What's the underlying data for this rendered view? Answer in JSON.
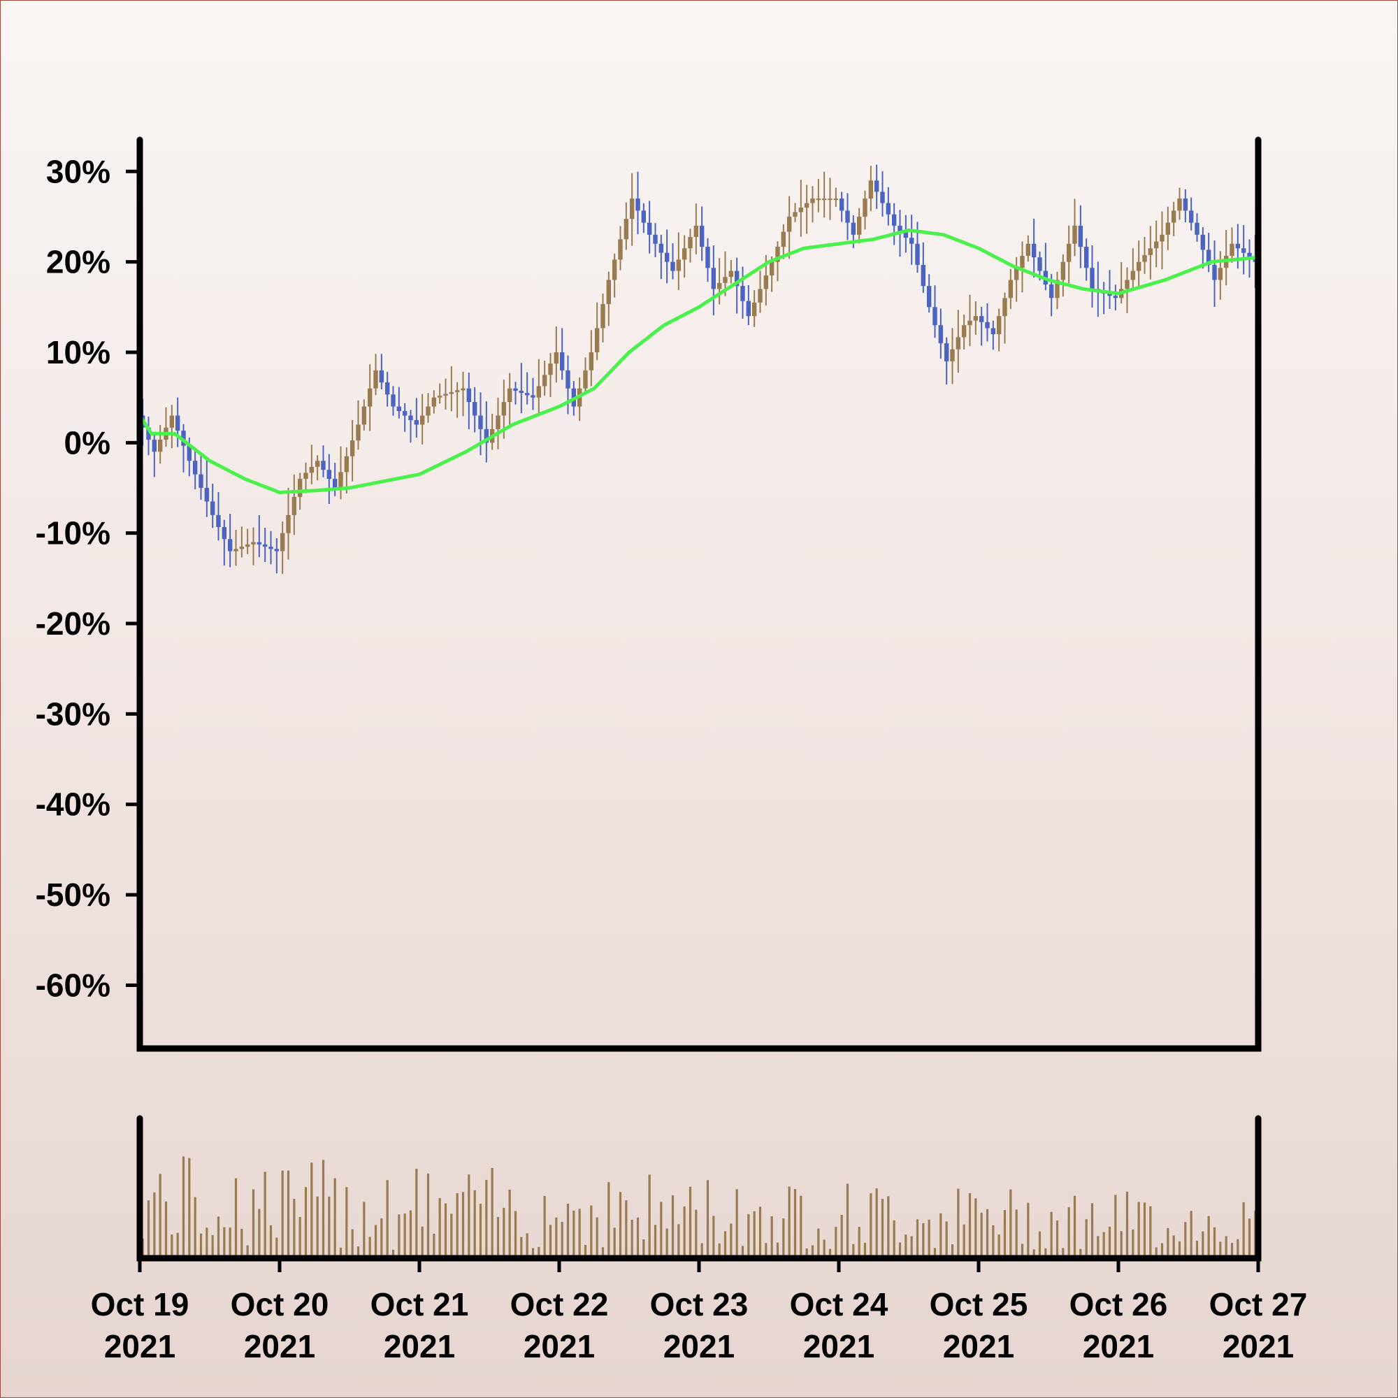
{
  "chart_data": {
    "type": "candlestick",
    "title": "",
    "xlabel": "",
    "ylabel": "",
    "ylim": [
      -67,
      33.5
    ],
    "yticks": [
      30,
      20,
      10,
      0,
      -10,
      -20,
      -30,
      -40,
      -50,
      -60
    ],
    "ytick_labels": [
      "30%",
      "20%",
      "10%",
      "0%",
      "-10%",
      "-20%",
      "-30%",
      "-40%",
      "-50%",
      "-60%"
    ],
    "xlim": [
      "2021-10-19",
      "2021-10-27"
    ],
    "x_ticks": [
      {
        "date": "2021-10-19",
        "line1": "Oct 19",
        "line2": "2021"
      },
      {
        "date": "2021-10-20",
        "line1": "Oct 20",
        "line2": "2021"
      },
      {
        "date": "2021-10-21",
        "line1": "Oct 21",
        "line2": "2021"
      },
      {
        "date": "2021-10-22",
        "line1": "Oct 22",
        "line2": "2021"
      },
      {
        "date": "2021-10-23",
        "line1": "Oct 23",
        "line2": "2021"
      },
      {
        "date": "2021-10-24",
        "line1": "Oct 24",
        "line2": "2021"
      },
      {
        "date": "2021-10-25",
        "line1": "Oct 25",
        "line2": "2021"
      },
      {
        "date": "2021-10-26",
        "line1": "Oct 26",
        "line2": "2021"
      },
      {
        "date": "2021-10-27",
        "line1": "Oct 27",
        "line2": "2021"
      }
    ],
    "up_color": "#9a7b4f",
    "down_color": "#4a64c0",
    "ma_color": "#4cf04c",
    "volume_color": "#9a7b4f",
    "price_anchors": [
      [
        "2021-10-19 00:00",
        3
      ],
      [
        "2021-10-19 03:00",
        -1
      ],
      [
        "2021-10-19 06:00",
        3
      ],
      [
        "2021-10-19 09:00",
        -2
      ],
      [
        "2021-10-19 13:00",
        -8
      ],
      [
        "2021-10-19 16:00",
        -12
      ],
      [
        "2021-10-19 20:00",
        -11
      ],
      [
        "2021-10-20 00:00",
        -12
      ],
      [
        "2021-10-20 04:00",
        -4
      ],
      [
        "2021-10-20 07:00",
        -2
      ],
      [
        "2021-10-20 10:00",
        -5
      ],
      [
        "2021-10-20 14:00",
        2
      ],
      [
        "2021-10-20 17:00",
        8
      ],
      [
        "2021-10-20 20:00",
        4
      ],
      [
        "2021-10-21 00:00",
        2
      ],
      [
        "2021-10-21 03:00",
        5
      ],
      [
        "2021-10-21 08:00",
        6
      ],
      [
        "2021-10-21 12:00",
        0
      ],
      [
        "2021-10-21 16:00",
        6
      ],
      [
        "2021-10-21 20:00",
        5
      ],
      [
        "2021-10-22 00:00",
        10
      ],
      [
        "2021-10-22 03:00",
        4
      ],
      [
        "2021-10-22 06:00",
        10
      ],
      [
        "2021-10-22 09:00",
        18
      ],
      [
        "2021-10-22 13:00",
        27
      ],
      [
        "2021-10-22 16:00",
        23
      ],
      [
        "2021-10-22 20:00",
        19
      ],
      [
        "2021-10-23 00:00",
        24
      ],
      [
        "2021-10-23 03:00",
        17
      ],
      [
        "2021-10-23 06:00",
        19
      ],
      [
        "2021-10-23 09:00",
        14
      ],
      [
        "2021-10-23 13:00",
        20
      ],
      [
        "2021-10-23 16:00",
        25
      ],
      [
        "2021-10-23 20:00",
        27
      ],
      [
        "2021-10-24 00:00",
        27
      ],
      [
        "2021-10-24 03:00",
        23
      ],
      [
        "2021-10-24 06:00",
        29
      ],
      [
        "2021-10-24 10:00",
        24
      ],
      [
        "2021-10-24 13:00",
        22
      ],
      [
        "2021-10-24 16:00",
        15
      ],
      [
        "2021-10-24 19:00",
        9
      ],
      [
        "2021-10-24 22:00",
        13
      ],
      [
        "2021-10-25 00:00",
        14
      ],
      [
        "2021-10-25 03:00",
        12
      ],
      [
        "2021-10-25 06:00",
        18
      ],
      [
        "2021-10-25 09:00",
        22
      ],
      [
        "2021-10-25 13:00",
        16
      ],
      [
        "2021-10-25 17:00",
        24
      ],
      [
        "2021-10-25 20:00",
        17
      ],
      [
        "2021-10-26 00:00",
        16
      ],
      [
        "2021-10-26 04:00",
        20
      ],
      [
        "2021-10-26 08:00",
        23
      ],
      [
        "2021-10-26 11:00",
        27
      ],
      [
        "2021-10-26 14:00",
        23
      ],
      [
        "2021-10-26 17:00",
        18
      ],
      [
        "2021-10-26 20:00",
        22
      ],
      [
        "2021-10-27 00:00",
        20
      ]
    ],
    "ma_series": [
      [
        "2021-10-19 00:00",
        3
      ],
      [
        "2021-10-19 02:00",
        1
      ],
      [
        "2021-10-19 06:00",
        1
      ],
      [
        "2021-10-19 12:00",
        -2
      ],
      [
        "2021-10-19 18:00",
        -4
      ],
      [
        "2021-10-20 00:00",
        -5.5
      ],
      [
        "2021-10-20 06:00",
        -5.3
      ],
      [
        "2021-10-20 12:00",
        -5
      ],
      [
        "2021-10-20 16:00",
        -4.5
      ],
      [
        "2021-10-21 00:00",
        -3.5
      ],
      [
        "2021-10-21 08:00",
        -1
      ],
      [
        "2021-10-21 16:00",
        2
      ],
      [
        "2021-10-22 00:00",
        4
      ],
      [
        "2021-10-22 06:00",
        6
      ],
      [
        "2021-10-22 12:00",
        10
      ],
      [
        "2021-10-22 18:00",
        13
      ],
      [
        "2021-10-23 00:00",
        15
      ],
      [
        "2021-10-23 06:00",
        17.5
      ],
      [
        "2021-10-23 12:00",
        20
      ],
      [
        "2021-10-23 18:00",
        21.5
      ],
      [
        "2021-10-24 00:00",
        22
      ],
      [
        "2021-10-24 06:00",
        22.5
      ],
      [
        "2021-10-24 12:00",
        23.5
      ],
      [
        "2021-10-24 18:00",
        23
      ],
      [
        "2021-10-25 00:00",
        21.5
      ],
      [
        "2021-10-25 06:00",
        19.5
      ],
      [
        "2021-10-25 12:00",
        18
      ],
      [
        "2021-10-25 18:00",
        17
      ],
      [
        "2021-10-26 00:00",
        16.5
      ],
      [
        "2021-10-26 08:00",
        18
      ],
      [
        "2021-10-26 16:00",
        20
      ],
      [
        "2021-10-27 00:00",
        20.5
      ]
    ]
  }
}
